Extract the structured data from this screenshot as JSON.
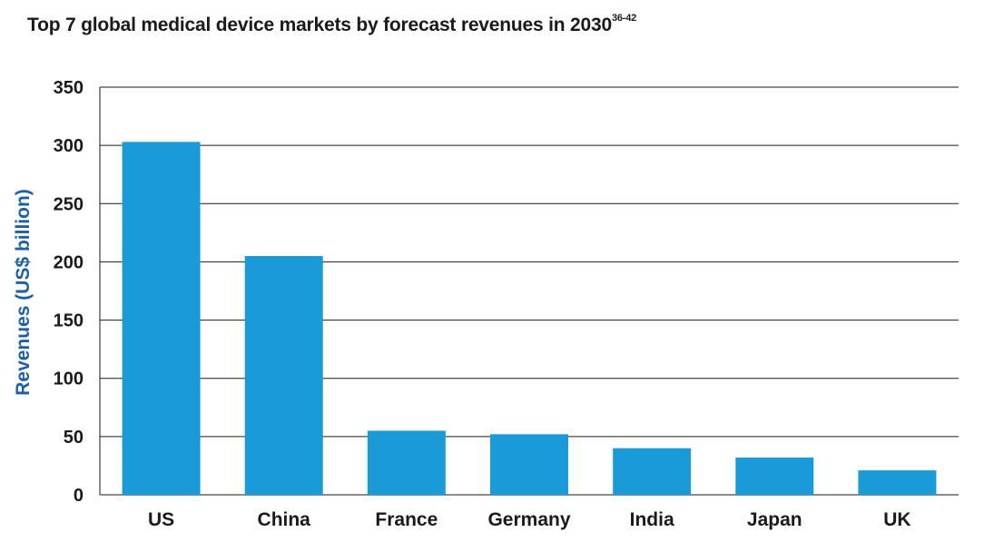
{
  "chart_data": {
    "type": "bar",
    "title": "Top 7 global medical device markets by forecast revenues in 2030",
    "title_superscript": "36-42",
    "xlabel": "",
    "ylabel": "Revenues (US$ billion)",
    "categories": [
      "US",
      "China",
      "France",
      "Germany",
      "India",
      "Japan",
      "UK"
    ],
    "values": [
      303,
      205,
      55,
      52,
      40,
      32,
      21
    ],
    "ylim": [
      0,
      350
    ],
    "yticks": [
      "0",
      "50",
      "100",
      "150",
      "200",
      "250",
      "300",
      "350"
    ],
    "grid": true,
    "bar_color": "#1b9ad8",
    "ylabel_color": "#1f5fa8"
  }
}
